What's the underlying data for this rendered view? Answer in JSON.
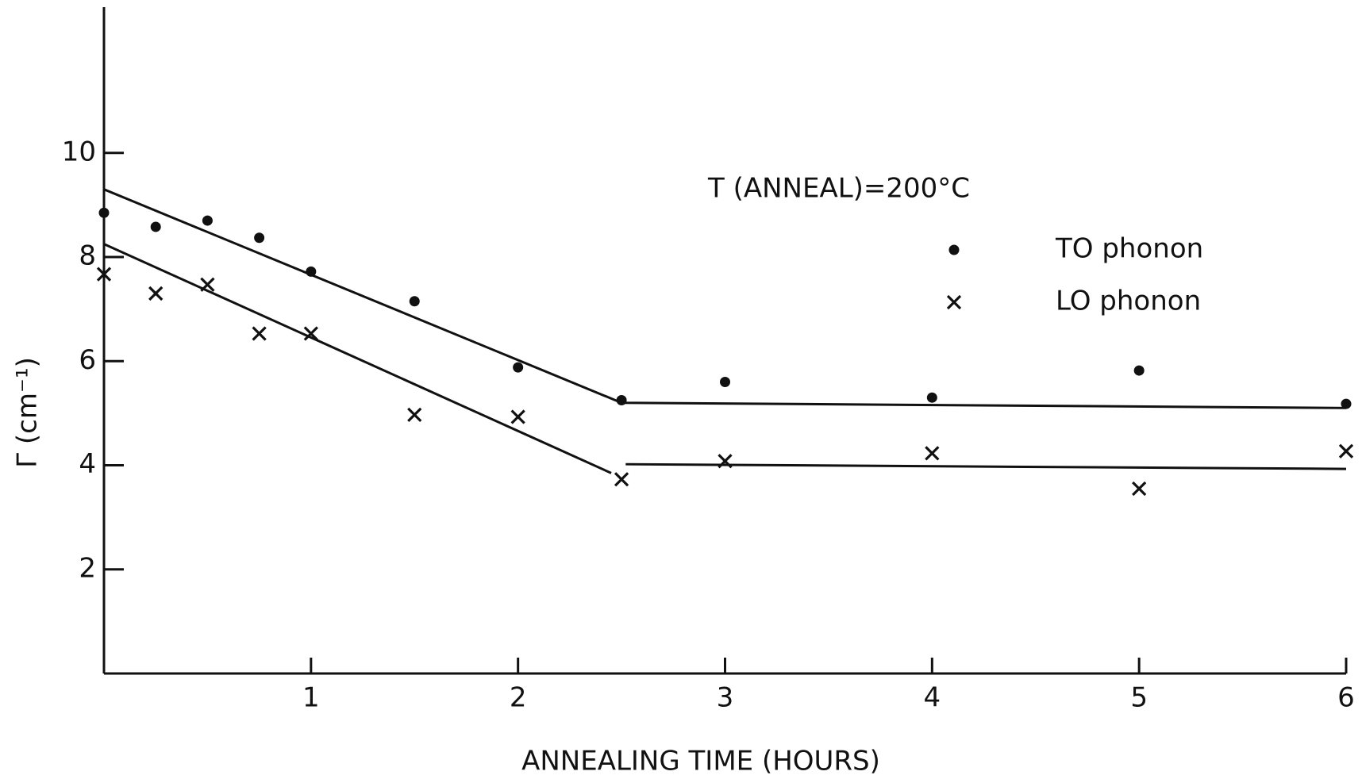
{
  "chart_data": {
    "type": "scatter",
    "xlabel": "ANNEALING TIME (HOURS)",
    "ylabel": "Γ (cm⁻¹)",
    "annotation": "T (ANNEAL)=200°C",
    "xlim": [
      0,
      6
    ],
    "ylim": [
      0,
      12.8
    ],
    "xticks": [
      1,
      2,
      3,
      4,
      5,
      6
    ],
    "yticks": [
      2,
      4,
      6,
      8,
      10
    ],
    "series": [
      {
        "name": "TO phonon",
        "marker": "dot",
        "color": "#111111",
        "x": [
          0,
          0.25,
          0.5,
          0.75,
          1,
          1.5,
          2,
          2.5,
          3,
          4,
          5,
          6
        ],
        "values": [
          8.85,
          8.58,
          8.7,
          8.37,
          7.72,
          7.15,
          5.88,
          5.25,
          5.6,
          5.3,
          5.82,
          5.18
        ]
      },
      {
        "name": "LO phonon",
        "marker": "cross",
        "color": "#111111",
        "x": [
          0,
          0.25,
          0.5,
          0.75,
          1,
          1.5,
          2,
          2.5,
          3,
          4,
          5,
          6
        ],
        "values": [
          7.67,
          7.3,
          7.47,
          6.53,
          6.53,
          4.97,
          4.93,
          3.73,
          4.08,
          4.23,
          3.55,
          4.27
        ]
      }
    ],
    "fit_lines": [
      {
        "x": [
          0,
          2.5,
          6
        ],
        "values": [
          9.3,
          5.2,
          5.1
        ]
      },
      {
        "x": [
          0,
          2.45,
          2.48,
          2.52,
          6
        ],
        "values": [
          8.25,
          3.85,
          null,
          4.02,
          3.93
        ]
      }
    ]
  }
}
